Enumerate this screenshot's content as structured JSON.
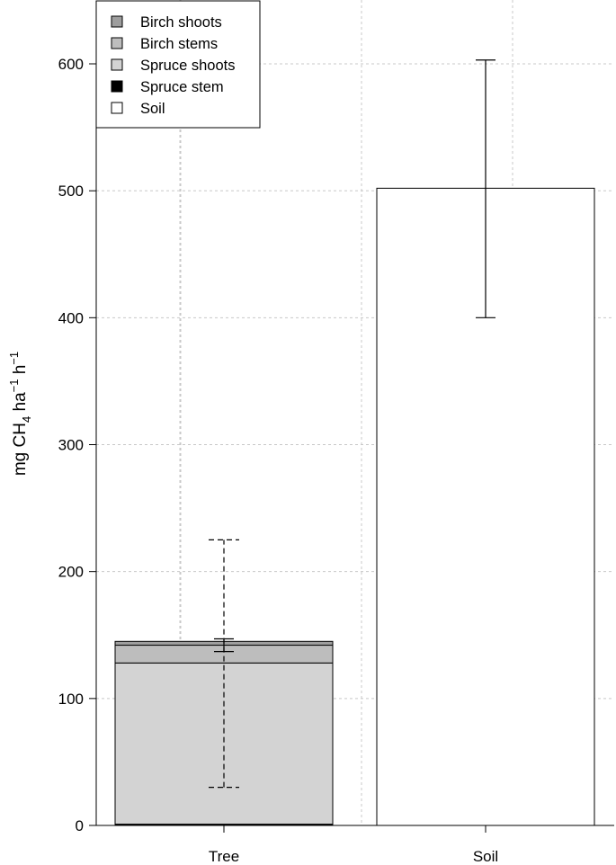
{
  "chart_data": {
    "type": "bar",
    "stacked": true,
    "categories": [
      "Tree",
      "Soil"
    ],
    "ylabel": {
      "base": "mg CH",
      "sub": "4",
      "mid": " ha",
      "sup1": "−1",
      "mid2": " h",
      "sup2": "−1"
    },
    "ylim": [
      0,
      650
    ],
    "yticks": [
      0,
      100,
      200,
      300,
      400,
      500,
      600
    ],
    "grid": true,
    "legend_position": "top-left",
    "series": [
      {
        "name": "Birch shoots",
        "color": "#9e9e9e",
        "values": [
          3,
          0
        ]
      },
      {
        "name": "Birch stems",
        "color": "#bdbdbd",
        "values": [
          14,
          0
        ]
      },
      {
        "name": "Spruce shoots",
        "color": "#d3d3d3",
        "values": [
          127,
          0
        ]
      },
      {
        "name": "Spruce stem",
        "color": "#000000",
        "values": [
          1,
          0
        ]
      },
      {
        "name": "Soil",
        "color": "#ffffff",
        "values": [
          0,
          502
        ]
      }
    ],
    "stack_order": [
      "Spruce stem",
      "Spruce shoots",
      "Birch stems",
      "Birch shoots",
      "Soil"
    ],
    "error_bars": [
      {
        "category": "Tree",
        "center": 128,
        "low": 30,
        "high": 225,
        "style": "dashed"
      },
      {
        "category": "Tree",
        "center": 142,
        "low": 137,
        "high": 147,
        "style": "solid"
      },
      {
        "category": "Soil",
        "center": 502,
        "low": 400,
        "high": 603,
        "style": "solid"
      }
    ]
  }
}
